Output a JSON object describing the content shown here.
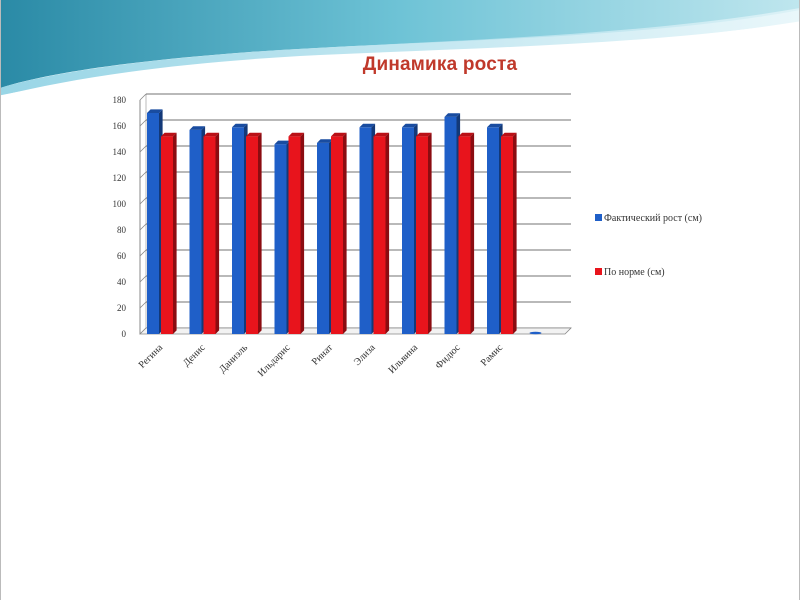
{
  "chart_data": {
    "type": "bar",
    "title": "Динамика роста",
    "xlabel": "",
    "ylabel": "",
    "ylim": [
      0,
      180
    ],
    "yticks": [
      0,
      20,
      40,
      60,
      80,
      100,
      120,
      140,
      160,
      180
    ],
    "categories": [
      "Регина",
      "Денис",
      "Даниэль",
      "Ильдарис",
      "Ринат",
      "Элиза",
      "Ильвина",
      "Фидюс",
      "Рамис",
      ""
    ],
    "series": [
      {
        "name": "Фактический рост (см)",
        "color": "#1f5fc8",
        "values": [
          170,
          157,
          159,
          146,
          147,
          159,
          159,
          167,
          159,
          0
        ]
      },
      {
        "name": "По норме (см)",
        "color": "#e8141c",
        "values": [
          152,
          152,
          152,
          152,
          152,
          152,
          152,
          152,
          152,
          null
        ]
      }
    ],
    "legend": "right",
    "grid": true,
    "style": "3d-bar"
  }
}
